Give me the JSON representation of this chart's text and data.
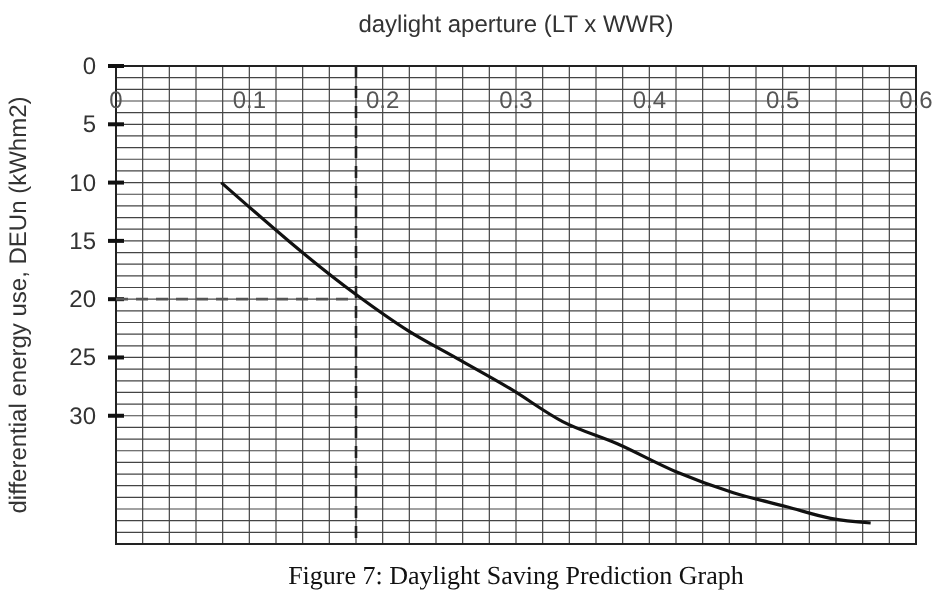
{
  "chart_data": {
    "type": "line",
    "xlabel": "daylight aperture (LT x WWR)",
    "ylabel": "differential energy use, DEUn  (kWhm2)",
    "x": [
      0.079,
      0.18,
      0.219,
      0.256,
      0.296,
      0.335,
      0.376,
      0.42,
      0.463,
      0.503,
      0.536,
      0.566
    ],
    "series": [
      {
        "color": "#111111",
        "values": [
          10,
          19.6,
          22.7,
          25.1,
          27.7,
          30.5,
          32.4,
          34.8,
          36.6,
          37.8,
          38.8,
          39.2
        ]
      }
    ],
    "xlim": [
      0,
      0.6
    ],
    "xticks": [
      0,
      0.1,
      0.2,
      0.3,
      0.4,
      0.5,
      0.6
    ],
    "ylim": [
      41,
      0
    ],
    "yticks": [
      0,
      5,
      10,
      15,
      20,
      25,
      30
    ],
    "grid": true,
    "marker": "none",
    "line_style": "solid",
    "ref_lines": [
      {
        "axis": "x",
        "value": 0.18,
        "line_style": "dashed",
        "color": "#222222"
      },
      {
        "axis": "y",
        "value": 20,
        "line_style": "dashed",
        "color": "#555555"
      }
    ],
    "annotations": [
      "Figure 7: Daylight Saving Prediction Graph"
    ]
  }
}
